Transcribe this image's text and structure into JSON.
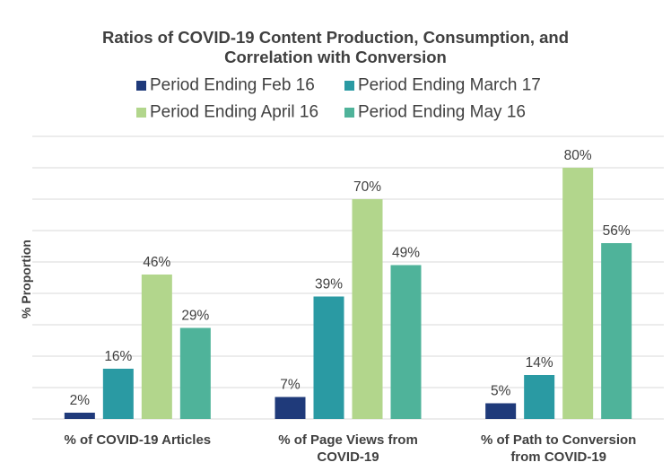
{
  "chart_data": {
    "type": "bar",
    "title": [
      "Ratios of COVID-19 Content Production, Consumption, and",
      "Correlation with Conversion"
    ],
    "ylabel": "% Proportion",
    "xlabel": "",
    "ylim": [
      0,
      90
    ],
    "y_grid_step": 10,
    "grid": true,
    "legend_position": "top",
    "value_suffix": "%",
    "categories": [
      [
        "% of COVID-19 Articles"
      ],
      [
        "% of Page Views from",
        "COVID-19"
      ],
      [
        "% of Path to Conversion",
        "from COVID-19"
      ]
    ],
    "series": [
      {
        "name": "Period Ending Feb 16",
        "color": "#1f3a7a",
        "values": [
          2,
          7,
          5
        ]
      },
      {
        "name": "Period Ending March 17",
        "color": "#2a9aa3",
        "values": [
          16,
          39,
          14
        ]
      },
      {
        "name": "Period Ending April 16",
        "color": "#b2d68c",
        "values": [
          46,
          70,
          80
        ]
      },
      {
        "name": "Period Ending May 16",
        "color": "#4fb39a",
        "values": [
          29,
          49,
          56
        ]
      }
    ]
  }
}
